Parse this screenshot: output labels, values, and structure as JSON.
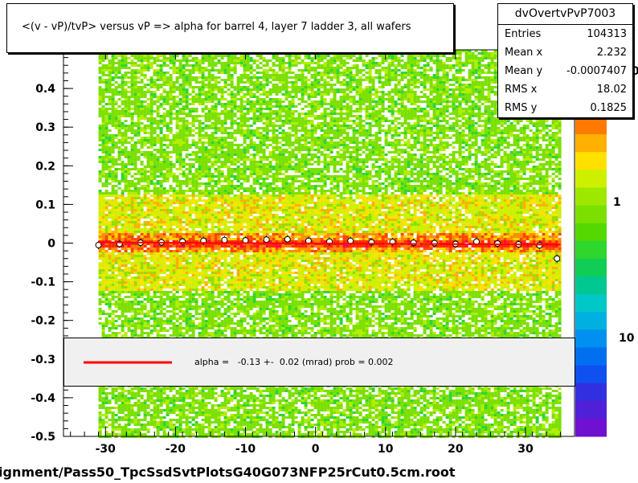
{
  "title": "<(v - vP)/tvP> versus   vP => alpha for barrel 4, layer 7 ladder 3, all wafers",
  "stats": {
    "name": "dvOvertvPvP7003",
    "rows": [
      {
        "label": "Entries",
        "value": "104313"
      },
      {
        "label": "Mean x",
        "value": "2.232"
      },
      {
        "label": "Mean y",
        "value": "-0.0007407"
      },
      {
        "label": "RMS x",
        "value": "18.02"
      },
      {
        "label": "RMS y",
        "value": "0.1825"
      }
    ]
  },
  "legend": {
    "text": "alpha =   -0.13 +-  0.02 (mrad) prob = 0.002",
    "line_color": "#ff0000"
  },
  "footer": "ignment/Pass50_TpcSsdSvtPlotsG40G073NFP25rCut0.5cm.root",
  "colorbar": {
    "labels": [
      "1",
      "10"
    ],
    "partial_label": "0"
  },
  "chart_data": {
    "type": "heatmap",
    "title": "<(v - vP)/tvP> versus   vP => alpha for barrel 4, layer 7 ladder 3, all wafers",
    "xlabel": "",
    "ylabel": "",
    "xlim": [
      -36,
      37
    ],
    "ylim": [
      -0.5,
      0.5
    ],
    "x_ticks": [
      -30,
      -20,
      -10,
      0,
      10,
      20,
      30
    ],
    "y_ticks": [
      0.4,
      0.3,
      0.2,
      0.1,
      0,
      -0.1,
      -0.2,
      -0.3,
      -0.4,
      -0.5
    ],
    "y_tick_labels": [
      "0.4",
      "0.3",
      "0.2",
      "0.1",
      "0",
      "-0.1",
      "-0.2",
      "-0.3",
      "-0.4",
      "-0.5"
    ],
    "data_x_range": [
      -31,
      35
    ],
    "profile": {
      "x": [
        -31,
        -28,
        -25,
        -22,
        -19,
        -16,
        -13,
        -10,
        -7,
        -4,
        -1,
        2,
        5,
        8,
        11,
        14,
        17,
        20,
        23,
        26,
        29,
        32,
        34.5
      ],
      "y": [
        -0.005,
        -0.002,
        0.001,
        0.002,
        0.004,
        0.006,
        0.008,
        0.007,
        0.009,
        0.01,
        0.006,
        0.004,
        0.006,
        0.002,
        0.003,
        0.001,
        0.0,
        -0.002,
        0.004,
        -0.001,
        -0.003,
        -0.006,
        -0.04
      ]
    },
    "fit": {
      "name": "alpha",
      "value": -0.13,
      "error": 0.02,
      "unit": "mrad",
      "prob": 0.002
    }
  }
}
